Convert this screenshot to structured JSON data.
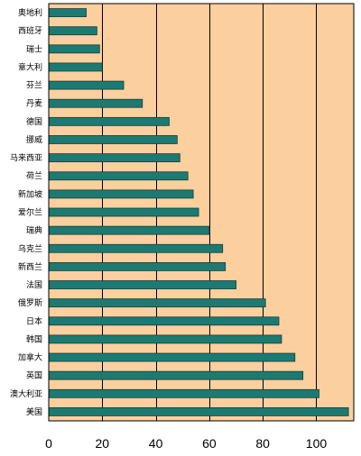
{
  "chart_data": {
    "type": "bar",
    "orientation": "horizontal",
    "categories": [
      "奥地利",
      "西班牙",
      "瑞士",
      "意大利",
      "芬兰",
      "丹麦",
      "德国",
      "挪威",
      "马来西亚",
      "荷兰",
      "新加坡",
      "爱尔兰",
      "瑞典",
      "乌克兰",
      "新西兰",
      "法国",
      "俄罗斯",
      "日本",
      "韩国",
      "加拿大",
      "英国",
      "澳大利亚",
      "美国"
    ],
    "values": [
      14,
      18,
      19,
      20,
      28,
      35,
      45,
      48,
      49,
      52,
      54,
      56,
      60,
      65,
      66,
      70,
      81,
      86,
      87,
      92,
      95,
      101,
      112
    ],
    "xlim": [
      0,
      114
    ],
    "xticks": [
      "0",
      "20",
      "40",
      "60",
      "80",
      "100"
    ],
    "xtick_values": [
      0,
      20,
      40,
      60,
      80,
      100
    ],
    "grid": "vertical",
    "legend": "none",
    "colors": {
      "plot_background": "#fccf9e",
      "bar_fill": "#1d7a72",
      "bar_edge": "#0f3f3b",
      "grid": "#000000"
    }
  }
}
